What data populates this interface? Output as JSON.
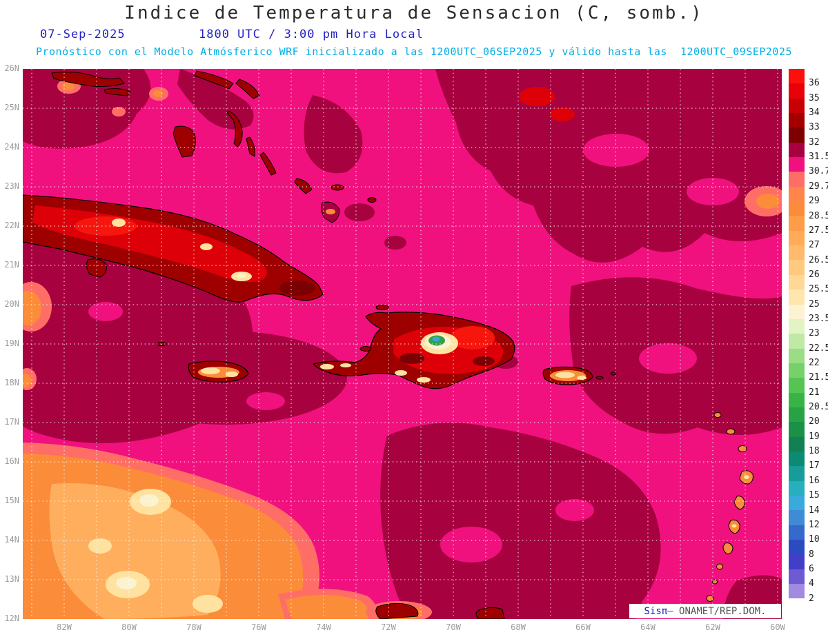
{
  "header": {
    "title": "Indice de Temperatura de Sensacion (C, somb.)",
    "date": "07-Sep-2025",
    "time": "1800 UTC / 3:00 pm Hora Local",
    "forecast_note": "Pronóstico con el Modelo Atmósferico WRF inicializado a las 1200UTC_06SEP2025 y válido hasta las  1200UTC_09SEP2025"
  },
  "accents": {
    "date_blue": "#2222C8",
    "note_cyan": "#00AEE8",
    "axis_gray": "#9B9B9B",
    "watermark_blue": "#1515C8",
    "watermark_gray": "#555555"
  },
  "watermark": {
    "brand": "Sisπ",
    "rest": "– ONAMET/REP.DOM."
  },
  "map": {
    "lat_labels": [
      "26N",
      "25N",
      "24N",
      "23N",
      "22N",
      "21N",
      "20N",
      "19N",
      "18N",
      "17N",
      "16N",
      "15N",
      "14N",
      "13N",
      "12N"
    ],
    "lon_labels": [
      "82W",
      "80W",
      "78W",
      "76W",
      "74W",
      "72W",
      "70W",
      "68W",
      "66W",
      "64W",
      "62W",
      "60W"
    ]
  },
  "colorbar": {
    "labels": [
      "36",
      "35",
      "34",
      "33",
      "32",
      "31.5",
      "30.7",
      "29.7",
      "29",
      "28.5",
      "27.5",
      "27",
      "26.5",
      "26",
      "25.5",
      "25",
      "23.5",
      "23",
      "22.5",
      "22",
      "21.5",
      "21",
      "20.5",
      "20",
      "19",
      "18",
      "17",
      "16",
      "15",
      "14",
      "12",
      "10",
      "8",
      "6",
      "4",
      "2"
    ],
    "colors": [
      "#FB100C",
      "#E80208",
      "#C90003",
      "#A40000",
      "#7E0000",
      "#A80140",
      "#F0117E",
      "#FF6E66",
      "#FF8548",
      "#FB8C39",
      "#FF9C47",
      "#FFAB58",
      "#FFBA6B",
      "#FFC980",
      "#FFD896",
      "#FFE6AE",
      "#FCF3D2",
      "#E2F3C4",
      "#BFE9A4",
      "#9ADD85",
      "#76D169",
      "#54C453",
      "#38B447",
      "#27A345",
      "#1A9048",
      "#128052",
      "#0D8A74",
      "#169D99",
      "#27AFC0",
      "#3AA9DC",
      "#3E8BD6",
      "#3569CC",
      "#2B4BC0",
      "#3F3FC8",
      "#6E5AD2",
      "#A08AE2",
      "#FFFFFF"
    ]
  },
  "palette": {
    "magenta": "#F0117E",
    "ruby": "#A80140",
    "darkred": "#9E0000",
    "maroon": "#7A0004",
    "red": "#DE0008",
    "brightred": "#F6160E",
    "salmon": "#FF6E66",
    "orange": "#FB8C39",
    "lightorange": "#FFAE5E",
    "cream": "#FFE2A0",
    "paleyellow": "#FBF3CF",
    "green": "#2FA347",
    "blue": "#3FA0E0",
    "white": "#FFFFFF"
  }
}
